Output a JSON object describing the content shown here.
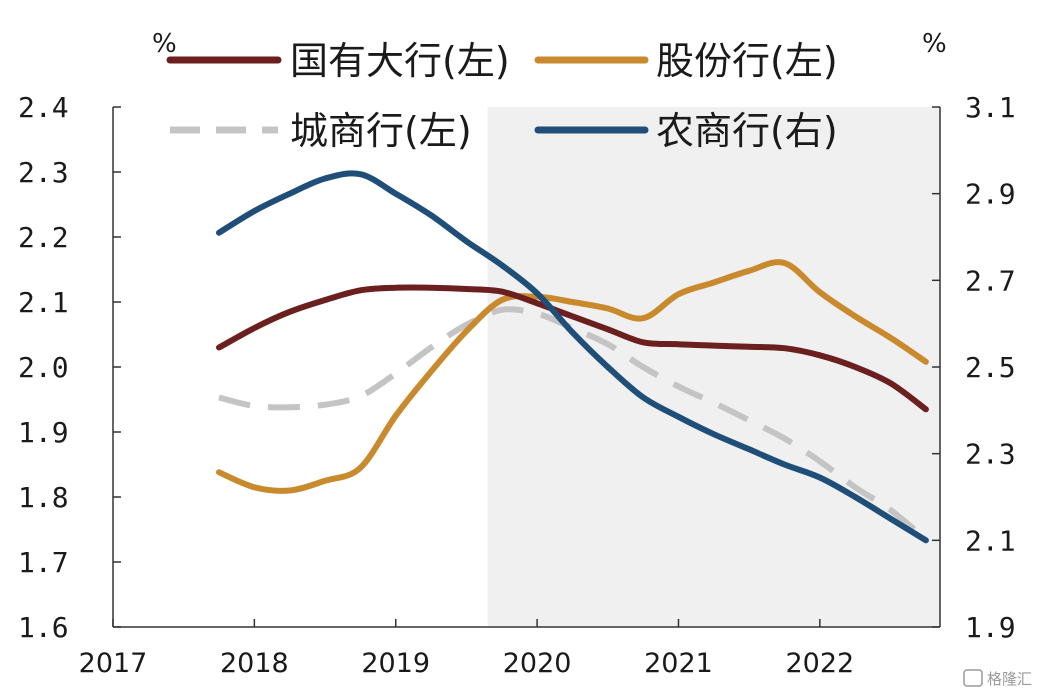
{
  "chart_data": {
    "type": "line",
    "left_unit": "%",
    "right_unit": "%",
    "y_left": {
      "min": 1.6,
      "max": 2.4,
      "ticks": [
        "1.6",
        "1.7",
        "1.8",
        "1.9",
        "2.0",
        "2.1",
        "2.2",
        "2.3",
        "2.4"
      ]
    },
    "y_right": {
      "min": 1.9,
      "max": 3.1,
      "ticks": [
        "1.9",
        "2.1",
        "2.3",
        "2.5",
        "2.7",
        "2.9",
        "3.1"
      ]
    },
    "x_range": [
      2017.0,
      2022.85
    ],
    "x_ticks": [
      "2017",
      "2018",
      "2019",
      "2020",
      "2021",
      "2022"
    ],
    "shaded_region": [
      2019.65,
      2022.85
    ],
    "legend_position": "top",
    "series": [
      {
        "name": "国有大行(左)",
        "axis": "left",
        "color": "#6b1f1f",
        "style": "solid",
        "x": [
          2017.75,
          2018.0,
          2018.25,
          2018.5,
          2018.75,
          2019.0,
          2019.25,
          2019.5,
          2019.75,
          2020.0,
          2020.25,
          2020.5,
          2020.75,
          2021.0,
          2021.25,
          2021.5,
          2021.75,
          2022.0,
          2022.25,
          2022.5,
          2022.75
        ],
        "values": [
          2.03,
          2.06,
          2.085,
          2.103,
          2.118,
          2.122,
          2.122,
          2.12,
          2.116,
          2.098,
          2.078,
          2.058,
          2.038,
          2.035,
          2.033,
          2.031,
          2.029,
          2.018,
          2.0,
          1.975,
          1.935
        ]
      },
      {
        "name": "股份行(左)",
        "axis": "left",
        "color": "#c98a2e",
        "style": "solid",
        "x": [
          2017.75,
          2018.0,
          2018.25,
          2018.5,
          2018.75,
          2019.0,
          2019.25,
          2019.5,
          2019.75,
          2020.0,
          2020.25,
          2020.5,
          2020.75,
          2021.0,
          2021.25,
          2021.5,
          2021.75,
          2022.0,
          2022.25,
          2022.5,
          2022.75
        ],
        "values": [
          1.838,
          1.815,
          1.81,
          1.825,
          1.845,
          1.925,
          1.993,
          2.055,
          2.103,
          2.108,
          2.1,
          2.09,
          2.075,
          2.112,
          2.13,
          2.148,
          2.16,
          2.115,
          2.078,
          2.045,
          2.008
        ]
      },
      {
        "name": "城商行(左)",
        "axis": "left",
        "color": "#c4c4c4",
        "style": "dashed",
        "x": [
          2017.75,
          2018.0,
          2018.25,
          2018.5,
          2018.75,
          2019.0,
          2019.25,
          2019.5,
          2019.75,
          2020.0,
          2020.25,
          2020.5,
          2020.75,
          2021.0,
          2021.25,
          2021.5,
          2021.75,
          2022.0,
          2022.25,
          2022.5,
          2022.75
        ],
        "values": [
          1.953,
          1.94,
          1.938,
          1.942,
          1.955,
          1.99,
          2.03,
          2.065,
          2.088,
          2.082,
          2.06,
          2.035,
          2.0,
          1.97,
          1.945,
          1.918,
          1.89,
          1.855,
          1.815,
          1.78,
          1.735
        ]
      },
      {
        "name": "农商行(右)",
        "axis": "right",
        "color": "#1f4e79",
        "style": "solid",
        "x": [
          2017.75,
          2018.0,
          2018.25,
          2018.5,
          2018.75,
          2019.0,
          2019.25,
          2019.5,
          2019.75,
          2020.0,
          2020.25,
          2020.5,
          2020.75,
          2021.0,
          2021.25,
          2021.5,
          2021.75,
          2022.0,
          2022.25,
          2022.5,
          2022.75
        ],
        "values": [
          2.81,
          2.86,
          2.9,
          2.935,
          2.945,
          2.9,
          2.85,
          2.79,
          2.735,
          2.67,
          2.58,
          2.5,
          2.43,
          2.385,
          2.345,
          2.31,
          2.275,
          2.245,
          2.2,
          2.15,
          2.1
        ]
      }
    ]
  },
  "watermark": "格隆汇"
}
